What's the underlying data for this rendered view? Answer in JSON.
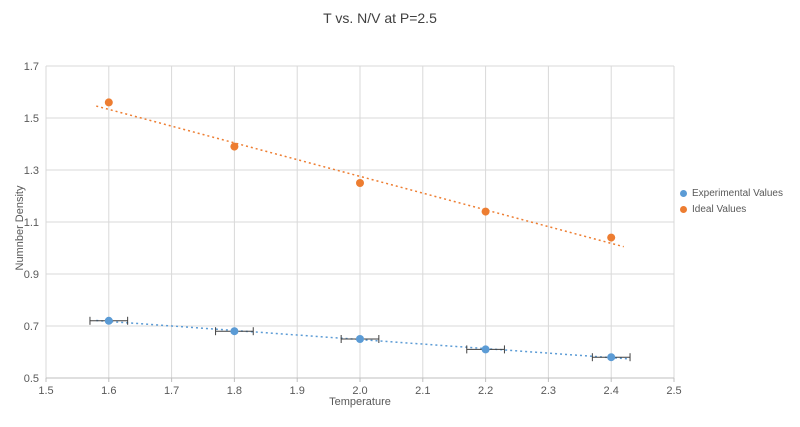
{
  "title": "T vs. N/V at P=2.5",
  "chart_data": {
    "type": "scatter",
    "title": "T vs. N/V at P=2.5",
    "xlabel": "Temperature",
    "ylabel": "Numnber Density",
    "xlim": [
      1.5,
      2.5
    ],
    "ylim": [
      0.5,
      1.7
    ],
    "x_ticks": [
      1.5,
      1.6,
      1.7,
      1.8,
      1.9,
      2.0,
      2.1,
      2.2,
      2.3,
      2.4,
      2.5
    ],
    "y_ticks": [
      0.5,
      0.7,
      0.9,
      1.1,
      1.3,
      1.5,
      1.7
    ],
    "grid": true,
    "legend_position": "right",
    "series": [
      {
        "name": "Experimental Values",
        "color": "#5B9BD5",
        "x": [
          1.6,
          1.8,
          2.0,
          2.2,
          2.4
        ],
        "y": [
          0.72,
          0.68,
          0.65,
          0.61,
          0.58
        ],
        "x_error": 0.03,
        "trendline": {
          "x1": 1.58,
          "y1": 0.721,
          "x2": 2.43,
          "y2": 0.573,
          "style": "dotted"
        }
      },
      {
        "name": "Ideal Values",
        "color": "#ED7D31",
        "x": [
          1.6,
          1.8,
          2.0,
          2.2,
          2.4
        ],
        "y": [
          1.56,
          1.39,
          1.25,
          1.14,
          1.04
        ],
        "x_error": 0,
        "trendline": {
          "x1": 1.58,
          "y1": 1.546,
          "x2": 2.42,
          "y2": 1.005,
          "style": "dotted"
        }
      }
    ]
  },
  "colors": {
    "gridline": "#D9D9D9",
    "axis_line": "#BFBFBF",
    "tick_text": "#595959",
    "error_bar": "#404040",
    "title_text": "#404040"
  }
}
